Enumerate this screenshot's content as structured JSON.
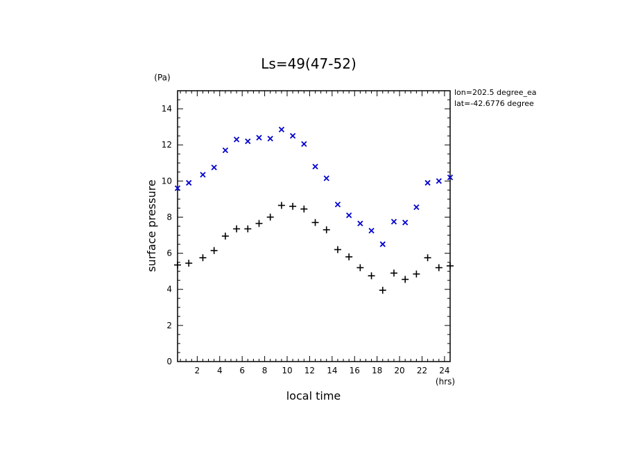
{
  "chart_data": {
    "type": "scatter",
    "title": "Ls=49(47-52)",
    "xlabel": "local time",
    "xunit": "(hrs)",
    "ylabel": "surface pressure",
    "yunit": "(Pa)",
    "xlim": [
      0.25,
      24.5
    ],
    "ylim": [
      0,
      15
    ],
    "xticks": [
      2,
      4,
      6,
      8,
      10,
      12,
      14,
      16,
      18,
      20,
      22,
      24
    ],
    "yticks": [
      0,
      2,
      4,
      6,
      8,
      10,
      12,
      14
    ],
    "grid": false,
    "annotations": [
      "lon=202.5 degree_ea",
      "lat=-42.6776 degree"
    ],
    "colors": {
      "series_blue": "#0000cc",
      "series_black": "#000000"
    },
    "series": [
      {
        "marker": "x",
        "color": "#0000cc",
        "x": [
          0.25,
          1.25,
          2.5,
          3.5,
          4.5,
          5.5,
          6.5,
          7.5,
          8.5,
          9.5,
          10.5,
          11.5,
          12.5,
          13.5,
          14.5,
          15.5,
          16.5,
          17.5,
          18.5,
          19.5,
          20.5,
          21.5,
          22.5,
          23.5,
          24.5
        ],
        "values": [
          9.6,
          9.9,
          10.35,
          10.75,
          11.7,
          12.3,
          12.2,
          12.4,
          12.35,
          12.85,
          12.5,
          12.05,
          10.8,
          10.15,
          8.7,
          8.1,
          7.65,
          7.25,
          6.5,
          7.75,
          7.7,
          8.55,
          9.9,
          10.0,
          10.2
        ]
      },
      {
        "marker": "+",
        "color": "#000000",
        "x": [
          0.25,
          1.25,
          2.5,
          3.5,
          4.5,
          5.5,
          6.5,
          7.5,
          8.5,
          9.5,
          10.5,
          11.5,
          12.5,
          13.5,
          14.5,
          15.5,
          16.5,
          17.5,
          18.5,
          19.5,
          20.5,
          21.5,
          22.5,
          23.5,
          24.5
        ],
        "values": [
          5.35,
          5.45,
          5.75,
          6.15,
          6.95,
          7.35,
          7.35,
          7.65,
          8.0,
          8.65,
          8.6,
          8.45,
          7.7,
          7.3,
          6.2,
          5.8,
          5.2,
          4.75,
          3.95,
          4.9,
          4.55,
          4.85,
          5.75,
          5.2,
          5.3
        ]
      }
    ]
  }
}
